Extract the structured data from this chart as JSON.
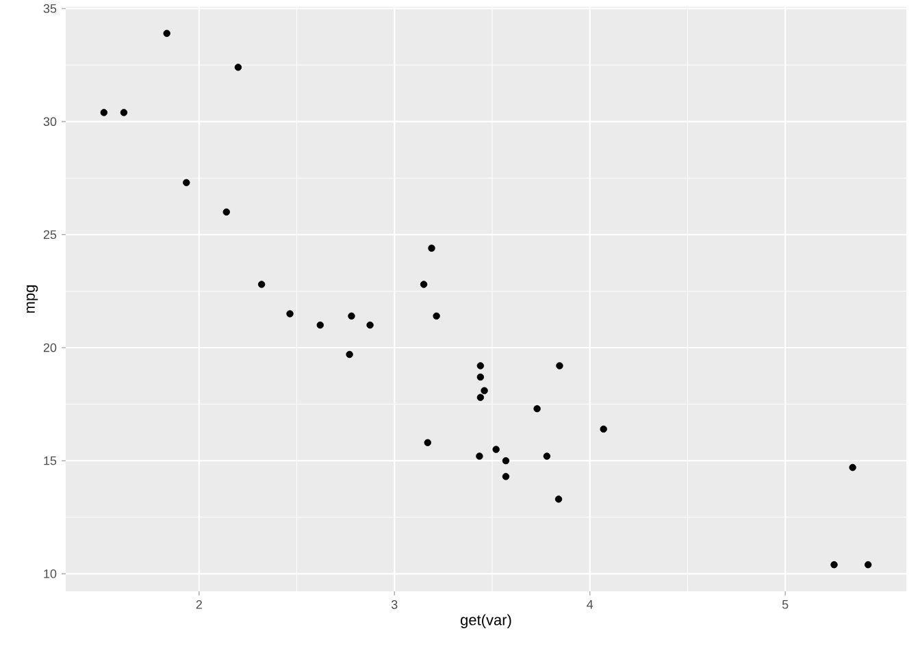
{
  "chart_data": {
    "type": "scatter",
    "xlabel": "get(var)",
    "ylabel": "mpg",
    "x": [
      2.62,
      2.875,
      2.32,
      3.215,
      3.44,
      3.46,
      3.57,
      3.19,
      3.15,
      3.44,
      3.44,
      4.07,
      3.73,
      3.78,
      5.25,
      5.424,
      5.345,
      2.2,
      1.615,
      1.835,
      2.465,
      3.52,
      3.435,
      3.84,
      3.845,
      1.935,
      2.14,
      1.513,
      3.17,
      2.77,
      3.57,
      2.78
    ],
    "values": [
      21.0,
      21.0,
      22.8,
      21.4,
      18.7,
      18.1,
      14.3,
      24.4,
      22.8,
      19.2,
      17.8,
      16.4,
      17.3,
      15.2,
      10.4,
      10.4,
      14.7,
      32.4,
      30.4,
      33.9,
      21.5,
      15.5,
      15.2,
      13.3,
      19.2,
      27.3,
      26.0,
      30.4,
      15.8,
      19.7,
      15.0,
      21.4
    ],
    "color": "#000000",
    "xlim": [
      1.3175,
      5.6196
    ],
    "ylim": [
      9.225,
      35.075
    ],
    "xticks": [
      2,
      3,
      4,
      5
    ],
    "yticks": [
      10,
      15,
      20,
      25,
      30,
      35
    ],
    "grid": true
  }
}
